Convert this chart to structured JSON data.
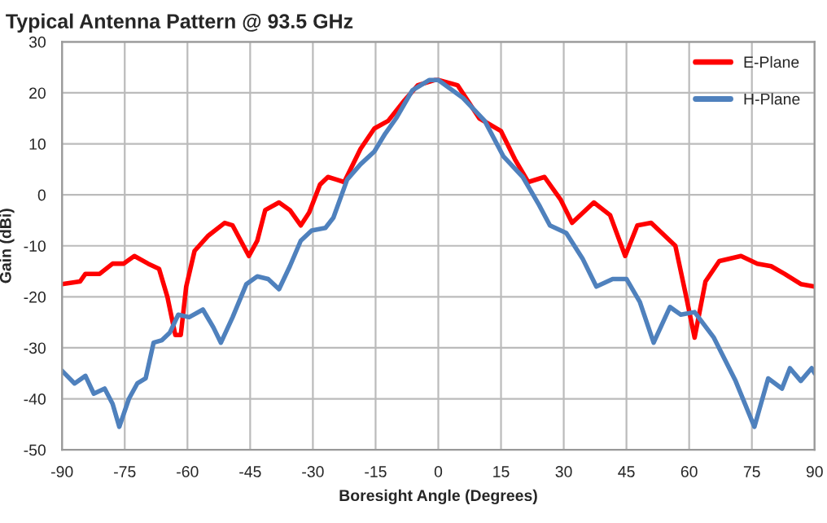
{
  "chart_data": {
    "type": "line",
    "title": "Typical Antenna Pattern @ 93.5 GHz",
    "xlabel": "Boresight Angle (Degrees)",
    "ylabel": "Gain (dBi)",
    "xlim": [
      -90,
      90
    ],
    "xticks": [
      -90,
      -75,
      -60,
      -45,
      -30,
      -15,
      0,
      15,
      30,
      45,
      60,
      75,
      90
    ],
    "ylim": [
      -50,
      30
    ],
    "yticks": [
      -50,
      -40,
      -30,
      -20,
      -10,
      0,
      10,
      20,
      30
    ],
    "grid": true,
    "legend": "top right",
    "marker": "none",
    "line_style": "solid",
    "series": [
      {
        "name": "E-Plane",
        "color": "#ff0000",
        "x": [
          -90,
          -85.7,
          -84.4,
          -81,
          -77.9,
          -75.3,
          -72.7,
          -69.4,
          -66.8,
          -64.8,
          -62.9,
          -61.6,
          -60.3,
          -58.3,
          -55,
          -51.1,
          -49.2,
          -45.3,
          -43.3,
          -41.4,
          -38.1,
          -35.5,
          -32.9,
          -30.9,
          -28.3,
          -26.4,
          -24.4,
          -22.5,
          -18.6,
          -15.3,
          -12,
          -8.1,
          -4.9,
          -0.9,
          0,
          4.6,
          9.8,
          15,
          18.3,
          21.5,
          25.4,
          29.3,
          32,
          37.2,
          41.1,
          44.7,
          47.6,
          50.9,
          56.7,
          59.3,
          61.3,
          63.9,
          67.2,
          72.4,
          76.3,
          79.6,
          82.8,
          86.7,
          90
        ],
        "values": [
          -17.5,
          -17,
          -15.5,
          -15.5,
          -13.5,
          -13.5,
          -12,
          -13.5,
          -14.5,
          -20,
          -27.5,
          -27.5,
          -18,
          -11,
          -8,
          -5.5,
          -6,
          -12,
          -9,
          -3,
          -1.5,
          -3,
          -6,
          -3.5,
          2,
          3.5,
          3,
          2.5,
          9,
          13,
          14.5,
          18.5,
          21.5,
          22.5,
          22.5,
          21.5,
          15,
          12.5,
          7,
          2.5,
          3.5,
          -1,
          -5.5,
          -1.5,
          -4,
          -12,
          -6,
          -5.5,
          -10,
          -20,
          -28,
          -17,
          -13,
          -12,
          -13.5,
          -14,
          -15.5,
          -17.5,
          -18
        ]
      },
      {
        "name": "H-Plane",
        "color": "#4f81bd",
        "x": [
          -90,
          -87,
          -84.4,
          -82.4,
          -79.8,
          -77.9,
          -76.3,
          -74,
          -72,
          -70,
          -68.1,
          -66.1,
          -64.2,
          -62.2,
          -59.6,
          -56.3,
          -53.8,
          -52,
          -49.2,
          -45.9,
          -43.3,
          -40.7,
          -38.1,
          -35.5,
          -32.9,
          -30.3,
          -27,
          -25.1,
          -21.8,
          -18.6,
          -15.3,
          -12.7,
          -10.1,
          -6.2,
          -2.2,
          0,
          5.9,
          11.1,
          15.6,
          20.2,
          24.1,
          26.7,
          30.6,
          34.5,
          37.8,
          41.7,
          45,
          48.2,
          51.5,
          55.4,
          58,
          61.3,
          65.9,
          71.1,
          75.6,
          78.9,
          82.2,
          84.1,
          86.7,
          89.3,
          90
        ],
        "values": [
          -34.5,
          -37,
          -35.5,
          -39,
          -38,
          -41,
          -45.5,
          -40,
          -37,
          -36,
          -29,
          -28.5,
          -27,
          -23.5,
          -24,
          -22.5,
          -26,
          -29,
          -24,
          -17.5,
          -16,
          -16.5,
          -18.5,
          -14,
          -9,
          -7,
          -6.5,
          -4.5,
          3,
          6,
          8.5,
          12,
          15,
          20.5,
          22.5,
          22.5,
          19,
          14.5,
          7.5,
          3.5,
          -2,
          -6,
          -7.5,
          -12.5,
          -18,
          -16.5,
          -16.5,
          -21,
          -29,
          -22,
          -23.5,
          -23,
          -28,
          -36.5,
          -45.5,
          -36,
          -38,
          -34,
          -36.5,
          -34,
          -35
        ]
      }
    ]
  }
}
